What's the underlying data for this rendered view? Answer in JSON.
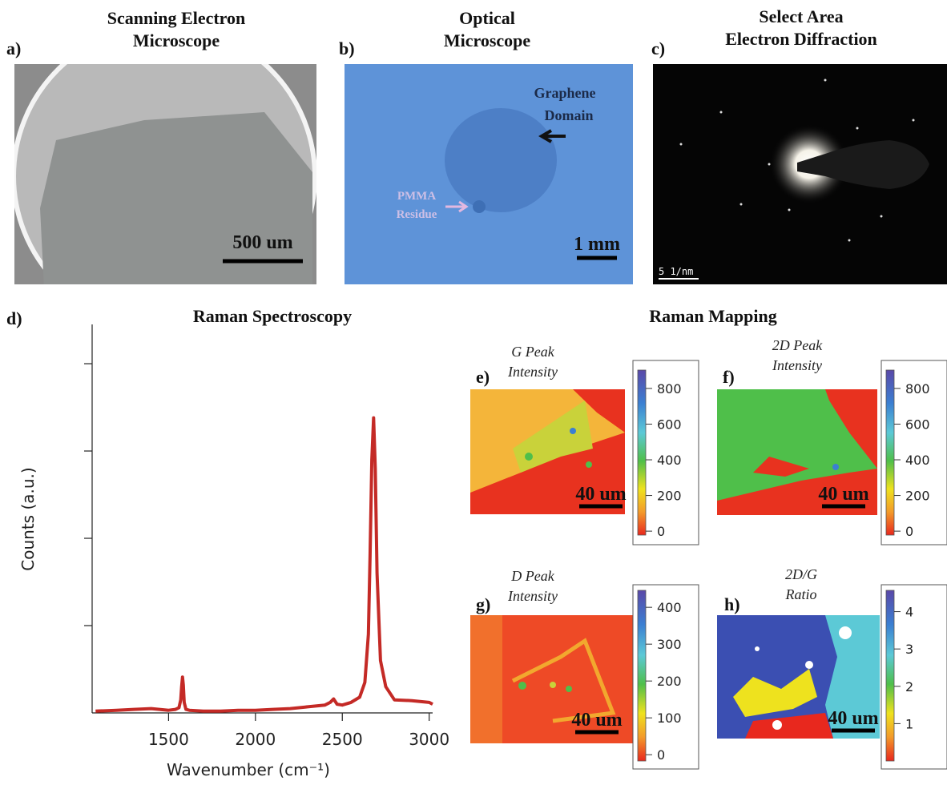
{
  "panels": {
    "a": {
      "label": "a)",
      "title": [
        "Scanning Electron",
        "Microscope"
      ],
      "scale_bar": "500 um"
    },
    "b": {
      "label": "b)",
      "title": [
        "Optical",
        "Microscope"
      ],
      "annotation_1": [
        "Graphene",
        "Domain"
      ],
      "annotation_2": [
        "PMMA",
        "Residue"
      ],
      "scale_bar": "1 mm"
    },
    "c": {
      "label": "c)",
      "title": [
        "Select Area",
        "Electron Diffraction"
      ],
      "scale_bar": "5 1/nm"
    }
  },
  "chart_data": {
    "type": "line",
    "panel_label": "d)",
    "title": "Raman Spectroscopy",
    "x_label": "Wavenumber (cm⁻¹)",
    "y_label": "Counts (a.u.)",
    "color": "#c42a26",
    "x": [
      1080,
      1200,
      1300,
      1400,
      1500,
      1540,
      1560,
      1570,
      1575,
      1580,
      1585,
      1590,
      1600,
      1620,
      1700,
      1800,
      1900,
      2000,
      2100,
      2200,
      2300,
      2400,
      2430,
      2450,
      2470,
      2500,
      2550,
      2600,
      2630,
      2650,
      2660,
      2670,
      2680,
      2690,
      2700,
      2720,
      2750,
      2800,
      2900,
      3000,
      3020
    ],
    "values": [
      0.02,
      0.03,
      0.04,
      0.05,
      0.03,
      0.04,
      0.06,
      0.15,
      0.3,
      0.41,
      0.32,
      0.12,
      0.04,
      0.03,
      0.02,
      0.02,
      0.03,
      0.03,
      0.04,
      0.05,
      0.07,
      0.09,
      0.12,
      0.16,
      0.1,
      0.09,
      0.12,
      0.18,
      0.35,
      0.9,
      1.8,
      2.9,
      3.38,
      2.8,
      1.6,
      0.6,
      0.3,
      0.15,
      0.14,
      0.12,
      0.1
    ],
    "xlim": [
      1060,
      3020
    ],
    "ylim": [
      0,
      4.45
    ],
    "xticks": [
      1500,
      2000,
      2500,
      3000
    ],
    "yticks": [
      1,
      2,
      3,
      4
    ]
  },
  "mapping": {
    "title": "Raman Mapping",
    "maps": [
      {
        "label": "e)",
        "title": [
          "G Peak",
          "Intensity"
        ],
        "scale_bar": "40 um",
        "colorbar": {
          "range": [
            -22,
            903
          ],
          "ticks": [
            0,
            200,
            400,
            600,
            800
          ]
        }
      },
      {
        "label": "f)",
        "title": [
          "2D Peak",
          "Intensity"
        ],
        "scale_bar": "40 um",
        "colorbar": {
          "range": [
            -22,
            903
          ],
          "ticks": [
            0,
            200,
            400,
            600,
            800
          ]
        }
      },
      {
        "label": "g)",
        "title": [
          "D Peak",
          "Intensity"
        ],
        "scale_bar": "40 um",
        "colorbar": {
          "range": [
            -17,
            446
          ],
          "ticks": [
            0,
            100,
            200,
            300,
            400
          ]
        }
      },
      {
        "label": "h)",
        "title": [
          "2D/G",
          "Ratio"
        ],
        "scale_bar": "40 um",
        "colorbar": {
          "range": [
            0,
            4.57
          ],
          "ticks": [
            1,
            2,
            3,
            4
          ]
        }
      }
    ]
  }
}
